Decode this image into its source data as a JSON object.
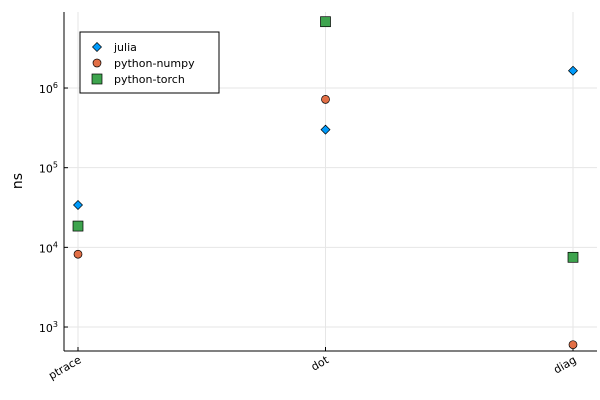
{
  "chart_data": {
    "type": "scatter",
    "title": "",
    "xlabel": "",
    "ylabel": "ns",
    "yscale": "log",
    "ylim": [
      500,
      9000000
    ],
    "grid": true,
    "legend_position": "top-left",
    "categories": [
      "ptrace",
      "dot",
      "diag"
    ],
    "y_tick_values": [
      1000,
      10000,
      100000,
      1000000
    ],
    "y_tick_labels": [
      {
        "base": "10",
        "exp": "3"
      },
      {
        "base": "10",
        "exp": "4"
      },
      {
        "base": "10",
        "exp": "5"
      },
      {
        "base": "10",
        "exp": "6"
      }
    ],
    "series": [
      {
        "name": "julia",
        "marker": "diamond",
        "color": "#009AFA",
        "values": [
          34000,
          300000,
          1650000
        ]
      },
      {
        "name": "python-numpy",
        "marker": "circle",
        "color": "#E26F46",
        "values": [
          8200,
          720000,
          600
        ]
      },
      {
        "name": "python-torch",
        "marker": "square",
        "color": "#3EA44E",
        "values": [
          18500,
          6800000,
          7500
        ]
      }
    ]
  }
}
